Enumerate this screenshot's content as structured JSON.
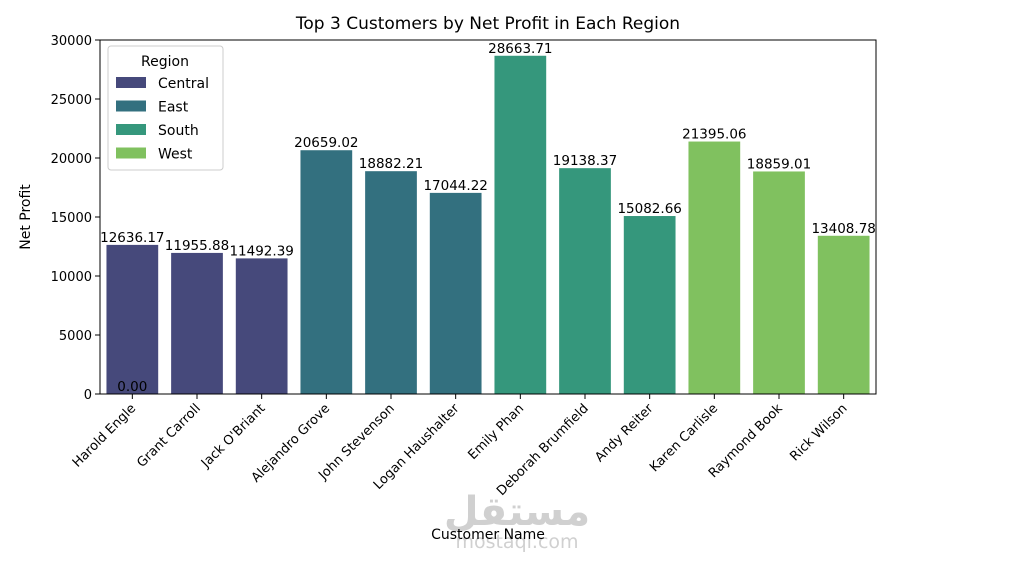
{
  "chart_data": {
    "type": "bar",
    "title": "Top 3 Customers by Net Profit in Each Region",
    "xlabel": "Customer Name",
    "ylabel": "Net Profit",
    "ylim": [
      0,
      30000
    ],
    "yticks": [
      0,
      5000,
      10000,
      15000,
      20000,
      25000,
      30000
    ],
    "grid": false,
    "legend": {
      "title": "Region",
      "placement": "top-left",
      "entries": [
        {
          "name": "Central",
          "color": "#46497b"
        },
        {
          "name": "East",
          "color": "#33707f"
        },
        {
          "name": "South",
          "color": "#35977c"
        },
        {
          "name": "West",
          "color": "#80c15f"
        }
      ]
    },
    "categories": [
      "Harold Engle",
      "Grant Carroll",
      "Jack O'Briant",
      "Alejandro Grove",
      "John Stevenson",
      "Logan Haushalter",
      "Emily Phan",
      "Deborah Brumfield",
      "Andy Reiter",
      "Karen Carlisle",
      "Raymond Book",
      "Rick Wilson"
    ],
    "regions": [
      "Central",
      "Central",
      "Central",
      "East",
      "East",
      "East",
      "South",
      "South",
      "South",
      "West",
      "West",
      "West"
    ],
    "values": [
      12636.17,
      11955.88,
      11492.39,
      20659.02,
      18882.21,
      17044.22,
      28663.71,
      19138.37,
      15082.66,
      21395.06,
      18859.01,
      13408.78
    ],
    "value_labels": [
      "12636.17",
      "11955.88",
      "11492.39",
      "20659.02",
      "18882.21",
      "17044.22",
      "28663.71",
      "19138.37",
      "15082.66",
      "21395.06",
      "18859.01",
      "13408.78"
    ],
    "annotations": [
      {
        "text": "0.00",
        "category": "Harold Engle",
        "y": 0
      }
    ]
  },
  "watermark": {
    "arabic": "مستقل",
    "latin": "mostaql.com"
  }
}
